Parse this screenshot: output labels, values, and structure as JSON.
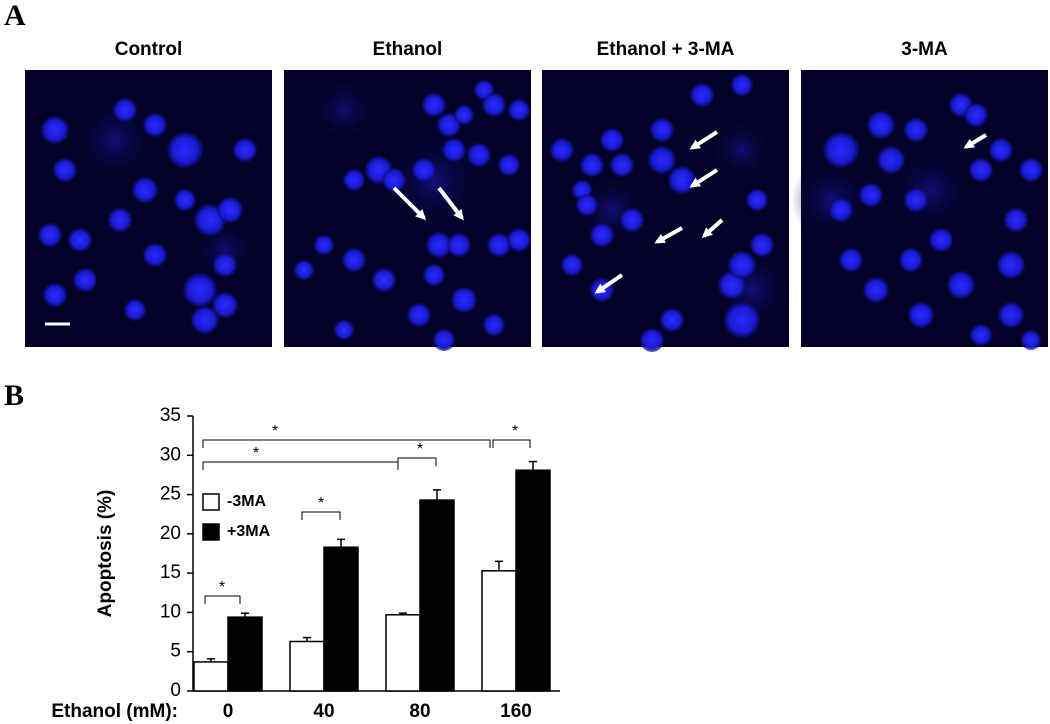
{
  "panel_a": {
    "label": "A",
    "images": [
      {
        "title": "Control"
      },
      {
        "title": "Ethanol"
      },
      {
        "title": "Ethanol + 3-MA"
      },
      {
        "title": "3-MA"
      }
    ]
  },
  "panel_b_label": "B",
  "chart_data": {
    "type": "bar",
    "ylabel": "Apoptosis (%)",
    "xlabel": "Ethanol (mM):",
    "categories": [
      "0",
      "40",
      "80",
      "160"
    ],
    "series": [
      {
        "name": "-3MA",
        "color": "#ffffff",
        "values": [
          3.7,
          6.3,
          9.7,
          15.3
        ],
        "errors": [
          0.4,
          0.5,
          0.2,
          1.2
        ]
      },
      {
        "name": "+3MA",
        "color": "#000000",
        "values": [
          9.4,
          18.3,
          24.3,
          28.1
        ],
        "errors": [
          0.5,
          1.0,
          1.3,
          1.1
        ]
      }
    ],
    "ylim": [
      0,
      35
    ],
    "yticks": [
      0,
      5,
      10,
      15,
      20,
      25,
      30,
      35
    ],
    "legend": "left",
    "annotations": [
      "*",
      "*",
      "*",
      "*",
      "*",
      "*"
    ]
  }
}
